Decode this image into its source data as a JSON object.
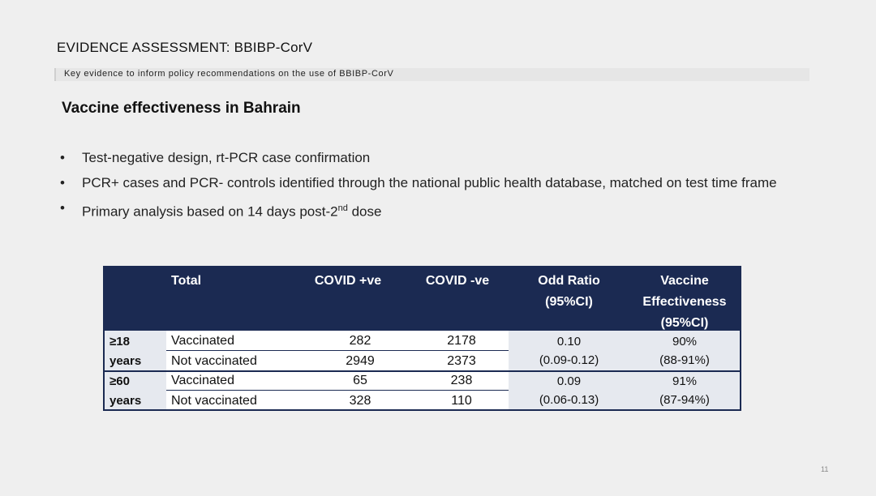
{
  "slide": {
    "title": "EVIDENCE ASSESSMENT: BBIBP-CorV",
    "subtitle": "Key evidence to inform policy recommendations on the use of BBIBP-CorV",
    "heading": "Vaccine effectiveness in Bahrain",
    "page_number": "11"
  },
  "bullets": [
    {
      "dot": "•",
      "text": "Test-negative design, rt-PCR case confirmation"
    },
    {
      "dot": "•",
      "text": "PCR+ cases and PCR- controls identified through the national public health database, matched on test time frame"
    },
    {
      "dot": "•",
      "text_before": "Primary analysis based on 14 days post-2",
      "sup": "nd",
      "text_after": " dose"
    }
  ],
  "table": {
    "headers": {
      "total": "Total",
      "covid_pos": "COVID +ve",
      "covid_neg": "COVID -ve",
      "odd_ratio_1": "Odd Ratio",
      "odd_ratio_2": "(95%CI)",
      "ve_1": "Vaccine",
      "ve_2": "Effectiveness",
      "ve_3": "(95%CI)"
    },
    "groups": [
      {
        "label_1": "≥18",
        "label_2": "years",
        "rows": [
          {
            "status": "Vaccinated",
            "pos": "282",
            "neg": "2178"
          },
          {
            "status": "Not vaccinated",
            "pos": "2949",
            "neg": "2373"
          }
        ],
        "odd_ratio": "0.10",
        "odd_ratio_ci": "(0.09-0.12)",
        "ve": "90%",
        "ve_ci": "(88-91%)"
      },
      {
        "label_1": "≥60",
        "label_2": "years",
        "rows": [
          {
            "status": "Vaccinated",
            "pos": "65",
            "neg": "238"
          },
          {
            "status": "Not vaccinated",
            "pos": "328",
            "neg": "110"
          }
        ],
        "odd_ratio": "0.09",
        "odd_ratio_ci": "(0.06-0.13)",
        "ve": "91%",
        "ve_ci": "(87-94%)"
      }
    ]
  }
}
